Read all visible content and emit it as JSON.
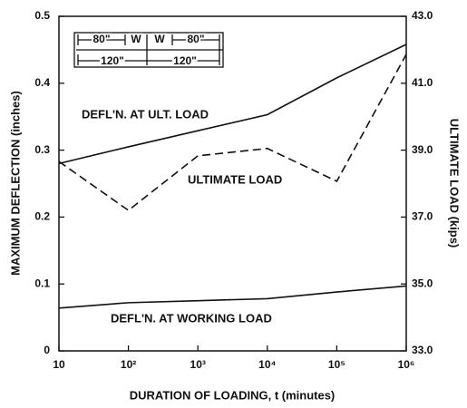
{
  "chart_data": {
    "type": "line",
    "xlabel": "DURATION OF LOADING, t (minutes)",
    "ylabel": "MAXIMUM DEFLECTION (inches)",
    "y2label": "ULTIMATE LOAD (kips)",
    "xscale": "log",
    "x": [
      10,
      100,
      1000,
      10000,
      100000,
      1000000
    ],
    "xlim": [
      10,
      1000000
    ],
    "xticks": [
      10,
      {
        "value": 100,
        "label": "10²"
      },
      {
        "value": 1000,
        "label": "10³"
      },
      {
        "value": 10000,
        "label": "10⁴"
      },
      {
        "value": 100000,
        "label": "10⁵"
      },
      {
        "value": 1000000,
        "label": "10⁶"
      }
    ],
    "ylim": [
      0,
      0.5
    ],
    "yticks": [
      0,
      0.1,
      0.2,
      0.3,
      0.4,
      0.5
    ],
    "y2lim": [
      33,
      43
    ],
    "y2ticks": [
      {
        "value": 33,
        "label": "33.0"
      },
      {
        "value": 35,
        "label": "35.0"
      },
      {
        "value": 37,
        "label": "37.0"
      },
      {
        "value": 39,
        "label": "39.0"
      },
      {
        "value": 41,
        "label": "41.0"
      },
      {
        "value": 43,
        "label": "43.0"
      }
    ],
    "series": [
      {
        "name": "DEFL'N. AT ULT. LOAD",
        "color": "#111111",
        "style": "solid",
        "values": [
          0.28,
          0.305,
          0.329,
          0.353,
          0.408,
          0.458
        ]
      },
      {
        "name": "ULTIMATE LOAD",
        "color": "#111111",
        "style": "dashed",
        "axis": "y2",
        "values": [
          38.66,
          37.2,
          38.83,
          39.05,
          38.07,
          41.86
        ]
      },
      {
        "name": "DEFL'N. AT WORKING LOAD",
        "color": "#111111",
        "style": "solid",
        "values": [
          0.064,
          0.072,
          0.075,
          0.078,
          0.088,
          0.097
        ]
      }
    ],
    "annotations": [
      "80\"",
      "W",
      "W",
      "80\"",
      "120\"",
      "120\""
    ]
  }
}
